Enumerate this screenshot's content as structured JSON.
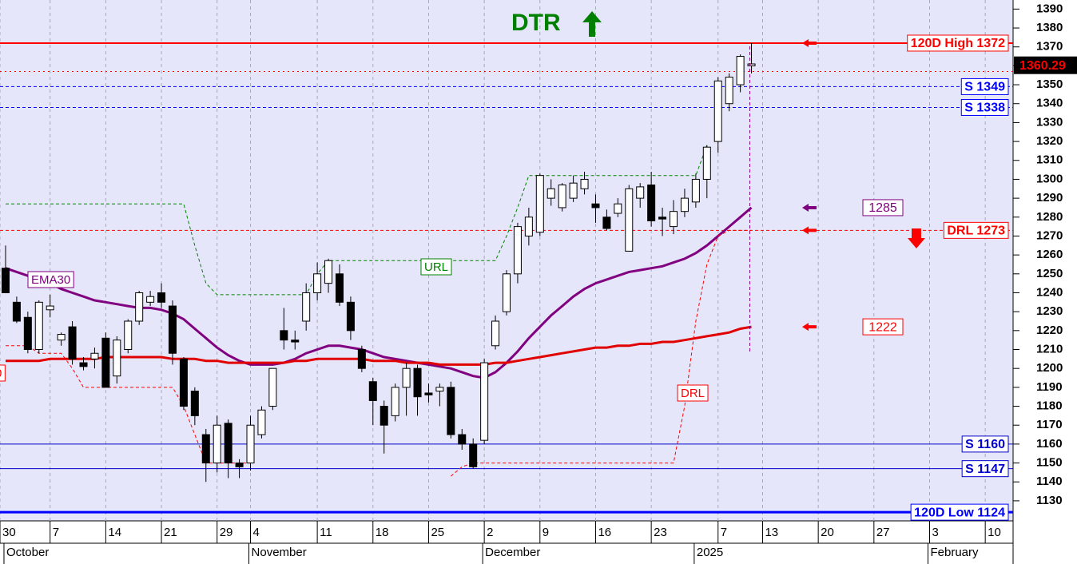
{
  "chart_data": {
    "type": "candlestick",
    "title": "DTR",
    "title_color": "#008000",
    "background": "#e6e6fa",
    "x": [
      0,
      1,
      2,
      3,
      4,
      5,
      6,
      7,
      8,
      9,
      10,
      11,
      12,
      13,
      14,
      15,
      16,
      17,
      18,
      19,
      20,
      21,
      22,
      23,
      24,
      25,
      26,
      27,
      28,
      29,
      30,
      31,
      32,
      33,
      34,
      35,
      36,
      37,
      38,
      39,
      40,
      41,
      42,
      43,
      44,
      45,
      46,
      47,
      48,
      49,
      50,
      51,
      52,
      53,
      54,
      55,
      56,
      57,
      58,
      59,
      60,
      61,
      62,
      63,
      64,
      65,
      66,
      67
    ],
    "open": [
      1253,
      1235,
      1227,
      1210,
      1231,
      1215,
      1222,
      1203,
      1205,
      1216,
      1196,
      1210,
      1225,
      1235,
      1240,
      1233,
      1205,
      1188,
      1165,
      1150,
      1171,
      1150,
      1150,
      1165,
      1180,
      1220,
      1215,
      1225,
      1240,
      1245,
      1250,
      1235,
      1210,
      1193,
      1180,
      1175,
      1190,
      1200,
      1187,
      1188,
      1190,
      1165,
      1160,
      1162,
      1212,
      1230,
      1250,
      1270,
      1272,
      1290,
      1285,
      1290,
      1295,
      1287,
      1280,
      1282,
      1262,
      1290,
      1297,
      1280,
      1275,
      1283,
      1288,
      1300,
      1320,
      1340,
      1350,
      1360
    ],
    "high": [
      1265,
      1238,
      1230,
      1236,
      1239,
      1219,
      1225,
      1206,
      1211,
      1219,
      1217,
      1226,
      1241,
      1241,
      1245,
      1236,
      1206,
      1190,
      1168,
      1175,
      1173,
      1152,
      1175,
      1180,
      1200,
      1232,
      1220,
      1245,
      1256,
      1258,
      1255,
      1238,
      1212,
      1195,
      1183,
      1192,
      1203,
      1202,
      1192,
      1192,
      1193,
      1168,
      1163,
      1205,
      1228,
      1252,
      1277,
      1285,
      1303,
      1300,
      1298,
      1302,
      1304,
      1292,
      1284,
      1290,
      1297,
      1298,
      1304,
      1285,
      1289,
      1295,
      1303,
      1318,
      1354,
      1356,
      1366,
      1372
    ],
    "low": [
      1240,
      1224,
      1208,
      1208,
      1227,
      1212,
      1202,
      1199,
      1200,
      1190,
      1192,
      1208,
      1223,
      1233,
      1232,
      1202,
      1178,
      1170,
      1140,
      1145,
      1142,
      1142,
      1146,
      1163,
      1178,
      1210,
      1210,
      1220,
      1236,
      1240,
      1233,
      1215,
      1198,
      1170,
      1155,
      1172,
      1175,
      1175,
      1182,
      1180,
      1163,
      1157,
      1147,
      1160,
      1210,
      1228,
      1245,
      1265,
      1270,
      1286,
      1283,
      1288,
      1292,
      1277,
      1273,
      1280,
      1262,
      1285,
      1275,
      1270,
      1271,
      1280,
      1285,
      1290,
      1314,
      1336,
      1346,
      1356
    ],
    "close": [
      1240,
      1225,
      1210,
      1235,
      1233,
      1218,
      1205,
      1201,
      1208,
      1190,
      1215,
      1225,
      1240,
      1238,
      1235,
      1208,
      1180,
      1175,
      1150,
      1170,
      1150,
      1148,
      1170,
      1178,
      1200,
      1215,
      1214,
      1240,
      1250,
      1257,
      1235,
      1220,
      1200,
      1183,
      1170,
      1190,
      1200,
      1185,
      1186,
      1190,
      1165,
      1160,
      1148,
      1203,
      1225,
      1250,
      1275,
      1280,
      1302,
      1295,
      1297,
      1298,
      1300,
      1285,
      1274,
      1287,
      1295,
      1296,
      1278,
      1279,
      1283,
      1290,
      1300,
      1317,
      1352,
      1354,
      1365,
      1361
    ],
    "xlim": [
      -0.5,
      90.5
    ],
    "xticks": [
      {
        "value": -0.5,
        "label": "30"
      },
      {
        "value": 4,
        "label": "7"
      },
      {
        "value": 9,
        "label": "14"
      },
      {
        "value": 14,
        "label": "21"
      },
      {
        "value": 19,
        "label": "29"
      },
      {
        "value": 22,
        "label": "4"
      },
      {
        "value": 28,
        "label": "11"
      },
      {
        "value": 33,
        "label": "18"
      },
      {
        "value": 38,
        "label": "25"
      },
      {
        "value": 43,
        "label": "2"
      },
      {
        "value": 48,
        "label": "9"
      },
      {
        "value": 53,
        "label": "16"
      },
      {
        "value": 58,
        "label": "23"
      },
      {
        "value": 64,
        "label": "7"
      },
      {
        "value": 68,
        "label": "13"
      },
      {
        "value": 73,
        "label": "20"
      },
      {
        "value": 78,
        "label": "27"
      },
      {
        "value": 83,
        "label": "3"
      },
      {
        "value": 88,
        "label": "10"
      }
    ],
    "month_ticks": [
      {
        "value": 0,
        "label": "October"
      },
      {
        "value": 22,
        "label": "November"
      },
      {
        "value": 43,
        "label": "December"
      },
      {
        "value": 62,
        "label": "2025"
      },
      {
        "value": 83,
        "label": "February"
      }
    ],
    "ylim": [
      1119.4,
      1394.8
    ],
    "yticks": [
      1130,
      1140,
      1150,
      1160,
      1170,
      1180,
      1190,
      1200,
      1210,
      1220,
      1230,
      1240,
      1250,
      1260,
      1270,
      1280,
      1290,
      1300,
      1310,
      1320,
      1330,
      1340,
      1350,
      1360,
      1370,
      1380,
      1390
    ],
    "grid": true,
    "lines": [
      {
        "name": "EMA30",
        "color": "#800080",
        "width": 3,
        "style": "solid",
        "values": [
          1253,
          1251,
          1249,
          1247,
          1245,
          1242,
          1240,
          1238,
          1236,
          1235,
          1234,
          1233,
          1232,
          1232,
          1231,
          1229,
          1226,
          1221,
          1216,
          1211,
          1207,
          1204,
          1202,
          1202,
          1202,
          1203,
          1205,
          1208,
          1210,
          1212,
          1212,
          1211,
          1210,
          1208,
          1206,
          1205,
          1204,
          1203,
          1202,
          1201,
          1200,
          1198,
          1196,
          1195,
          1198,
          1203,
          1209,
          1216,
          1222,
          1228,
          1233,
          1238,
          1242,
          1245,
          1247,
          1249,
          1251,
          1252,
          1253,
          1254,
          1256,
          1258,
          1261,
          1265,
          1270,
          1275,
          1280,
          1285
        ]
      },
      {
        "color": "#e00000",
        "width": 3,
        "style": "solid",
        "values": [
          1204,
          1204,
          1204,
          1204,
          1205,
          1205,
          1205,
          1205,
          1205,
          1206,
          1206,
          1206,
          1206,
          1206,
          1206,
          1205,
          1205,
          1205,
          1204,
          1204,
          1203,
          1203,
          1203,
          1203,
          1203,
          1203,
          1204,
          1204,
          1205,
          1205,
          1205,
          1205,
          1205,
          1204,
          1204,
          1204,
          1203,
          1203,
          1203,
          1202,
          1202,
          1202,
          1202,
          1202,
          1203,
          1203,
          1204,
          1205,
          1206,
          1207,
          1208,
          1209,
          1210,
          1211,
          1211,
          1212,
          1212,
          1213,
          1213,
          1214,
          1214,
          1215,
          1216,
          1217,
          1218,
          1219,
          1221,
          1222
        ]
      },
      {
        "name": "URL",
        "color": "#008000",
        "width": 1,
        "style": "dashed",
        "values": [
          1287,
          1287,
          1287,
          1287,
          1287,
          1287,
          1287,
          1287,
          1287,
          1287,
          1287,
          1287,
          1287,
          1287,
          1287,
          1287,
          1287,
          1265,
          1245,
          1239,
          1239,
          1239,
          1239,
          1239,
          1239,
          1239,
          1239,
          1239,
          1250,
          1257,
          1257,
          1257,
          1257,
          1257,
          1257,
          1257,
          1257,
          1257,
          1257,
          1257,
          1257,
          1257,
          1257,
          1257,
          1257,
          1270,
          1285,
          1302,
          1302,
          1302,
          1302,
          1302,
          1302,
          1302,
          1302,
          1302,
          1302,
          1302,
          1302,
          1302,
          1302,
          1302,
          1302,
          1318,
          null,
          null,
          null,
          null
        ]
      },
      {
        "name": "DRL",
        "color": "#ff0000",
        "width": 1,
        "style": "dashed",
        "values": [
          1212,
          1212,
          1212,
          1208,
          1208,
          1208,
          1200,
          1190,
          1190,
          1190,
          1190,
          1190,
          1190,
          1190,
          1190,
          1190,
          1180,
          1165,
          1150,
          1150,
          1150,
          1150,
          1150,
          null,
          null,
          null,
          null,
          null,
          null,
          null,
          null,
          null,
          null,
          null,
          null,
          null,
          null,
          null,
          null,
          null,
          1143,
          1148,
          1150,
          1150,
          1150,
          1150,
          1150,
          1150,
          1150,
          1150,
          1150,
          1150,
          1150,
          1150,
          1150,
          1150,
          1150,
          1150,
          1150,
          1150,
          1150,
          1180,
          1225,
          1255,
          1270,
          1273,
          1273,
          1273
        ]
      }
    ],
    "levels": [
      {
        "value": 1372,
        "label": "120D High 1372",
        "color": "#ff0000",
        "style": "solid",
        "width": 2,
        "arrow": true
      },
      {
        "value": 1357,
        "color": "#ff0000",
        "style": "dotted",
        "width": 1
      },
      {
        "value": 1349,
        "label": "S 1349",
        "color": "#0000ff",
        "style": "dashed",
        "width": 1
      },
      {
        "value": 1338,
        "label": "S 1338",
        "color": "#0000ff",
        "style": "dashed",
        "width": 1
      },
      {
        "value": 1273,
        "label": "DRL 1273",
        "color": "#ff0000",
        "style": "dashed",
        "width": 1,
        "arrow": true
      },
      {
        "value": 1160,
        "label": "S 1160",
        "color": "#0000cc",
        "style": "solid",
        "width": 1
      },
      {
        "value": 1147,
        "label": "S 1147",
        "color": "#0000cc",
        "style": "solid",
        "width": 1
      },
      {
        "value": 1124,
        "label": "120D Low 1124",
        "color": "#0000ff",
        "style": "solid",
        "width": 3
      }
    ],
    "price_tags": [
      {
        "value": 1285,
        "color": "#800080"
      },
      {
        "value": 1222,
        "color": "#ff0000"
      }
    ],
    "last_price": 1360.29,
    "annotations": [
      {
        "text": "EMA30",
        "color": "#800080"
      },
      {
        "text": "URL",
        "color": "#008000"
      },
      {
        "text": "DRL",
        "color": "#ff0000"
      },
      {
        "text": "0",
        "color": "#ff0000"
      }
    ]
  }
}
